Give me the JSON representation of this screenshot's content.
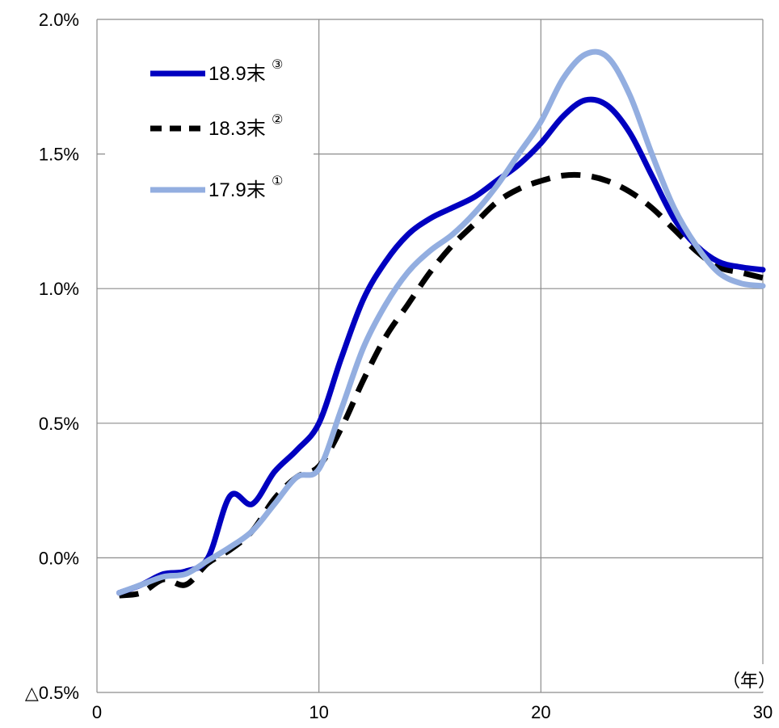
{
  "chart_data": {
    "type": "line",
    "x_unit_label": "（年）",
    "xlim": [
      0,
      30
    ],
    "ylim": [
      -0.5,
      2.0
    ],
    "x_ticks": [
      0,
      10,
      20,
      30
    ],
    "x_tick_labels": [
      "0",
      "10",
      "20",
      "30"
    ],
    "y_ticks": [
      -0.5,
      0.0,
      0.5,
      1.0,
      1.5,
      2.0
    ],
    "y_tick_labels": [
      "△0.5%",
      "0.0%",
      "0.5%",
      "1.0%",
      "1.5%",
      "2.0%"
    ],
    "grid": true,
    "legend_position": "top-left",
    "series": [
      {
        "name": "18.9末",
        "marker": "③",
        "color": "#0000C0",
        "style": "solid",
        "x": [
          1,
          2,
          3,
          4,
          5,
          6,
          7,
          8,
          9,
          10,
          11,
          12,
          13,
          14,
          15,
          16,
          17,
          18,
          19,
          20,
          21,
          22,
          23,
          24,
          25,
          26,
          27,
          28,
          29,
          30
        ],
        "y": [
          -0.13,
          -0.1,
          -0.06,
          -0.05,
          0.0,
          0.23,
          0.2,
          0.32,
          0.4,
          0.5,
          0.74,
          0.96,
          1.1,
          1.2,
          1.26,
          1.3,
          1.34,
          1.4,
          1.46,
          1.54,
          1.64,
          1.7,
          1.68,
          1.58,
          1.42,
          1.26,
          1.16,
          1.1,
          1.08,
          1.07
        ]
      },
      {
        "name": "18.3末",
        "marker": "②",
        "color": "#000000",
        "style": "dashed",
        "x": [
          1,
          2,
          3,
          4,
          5,
          6,
          7,
          8,
          9,
          10,
          11,
          12,
          13,
          14,
          15,
          16,
          17,
          18,
          19,
          20,
          21,
          22,
          23,
          24,
          25,
          26,
          27,
          28,
          29,
          30
        ],
        "y": [
          -0.14,
          -0.13,
          -0.08,
          -0.1,
          -0.02,
          0.03,
          0.1,
          0.22,
          0.3,
          0.34,
          0.48,
          0.66,
          0.82,
          0.94,
          1.06,
          1.16,
          1.24,
          1.32,
          1.37,
          1.4,
          1.42,
          1.42,
          1.4,
          1.36,
          1.3,
          1.22,
          1.14,
          1.08,
          1.06,
          1.04
        ]
      },
      {
        "name": "17.9末",
        "marker": "①",
        "color": "#93AEE0",
        "style": "solid",
        "x": [
          1,
          2,
          3,
          4,
          5,
          6,
          7,
          8,
          9,
          10,
          11,
          12,
          13,
          14,
          15,
          16,
          17,
          18,
          19,
          20,
          21,
          22,
          23,
          24,
          25,
          26,
          27,
          28,
          29,
          30
        ],
        "y": [
          -0.13,
          -0.1,
          -0.07,
          -0.06,
          -0.01,
          0.04,
          0.1,
          0.2,
          0.3,
          0.33,
          0.55,
          0.78,
          0.94,
          1.06,
          1.14,
          1.2,
          1.28,
          1.38,
          1.5,
          1.62,
          1.78,
          1.87,
          1.86,
          1.72,
          1.5,
          1.3,
          1.16,
          1.06,
          1.02,
          1.01
        ]
      }
    ]
  }
}
